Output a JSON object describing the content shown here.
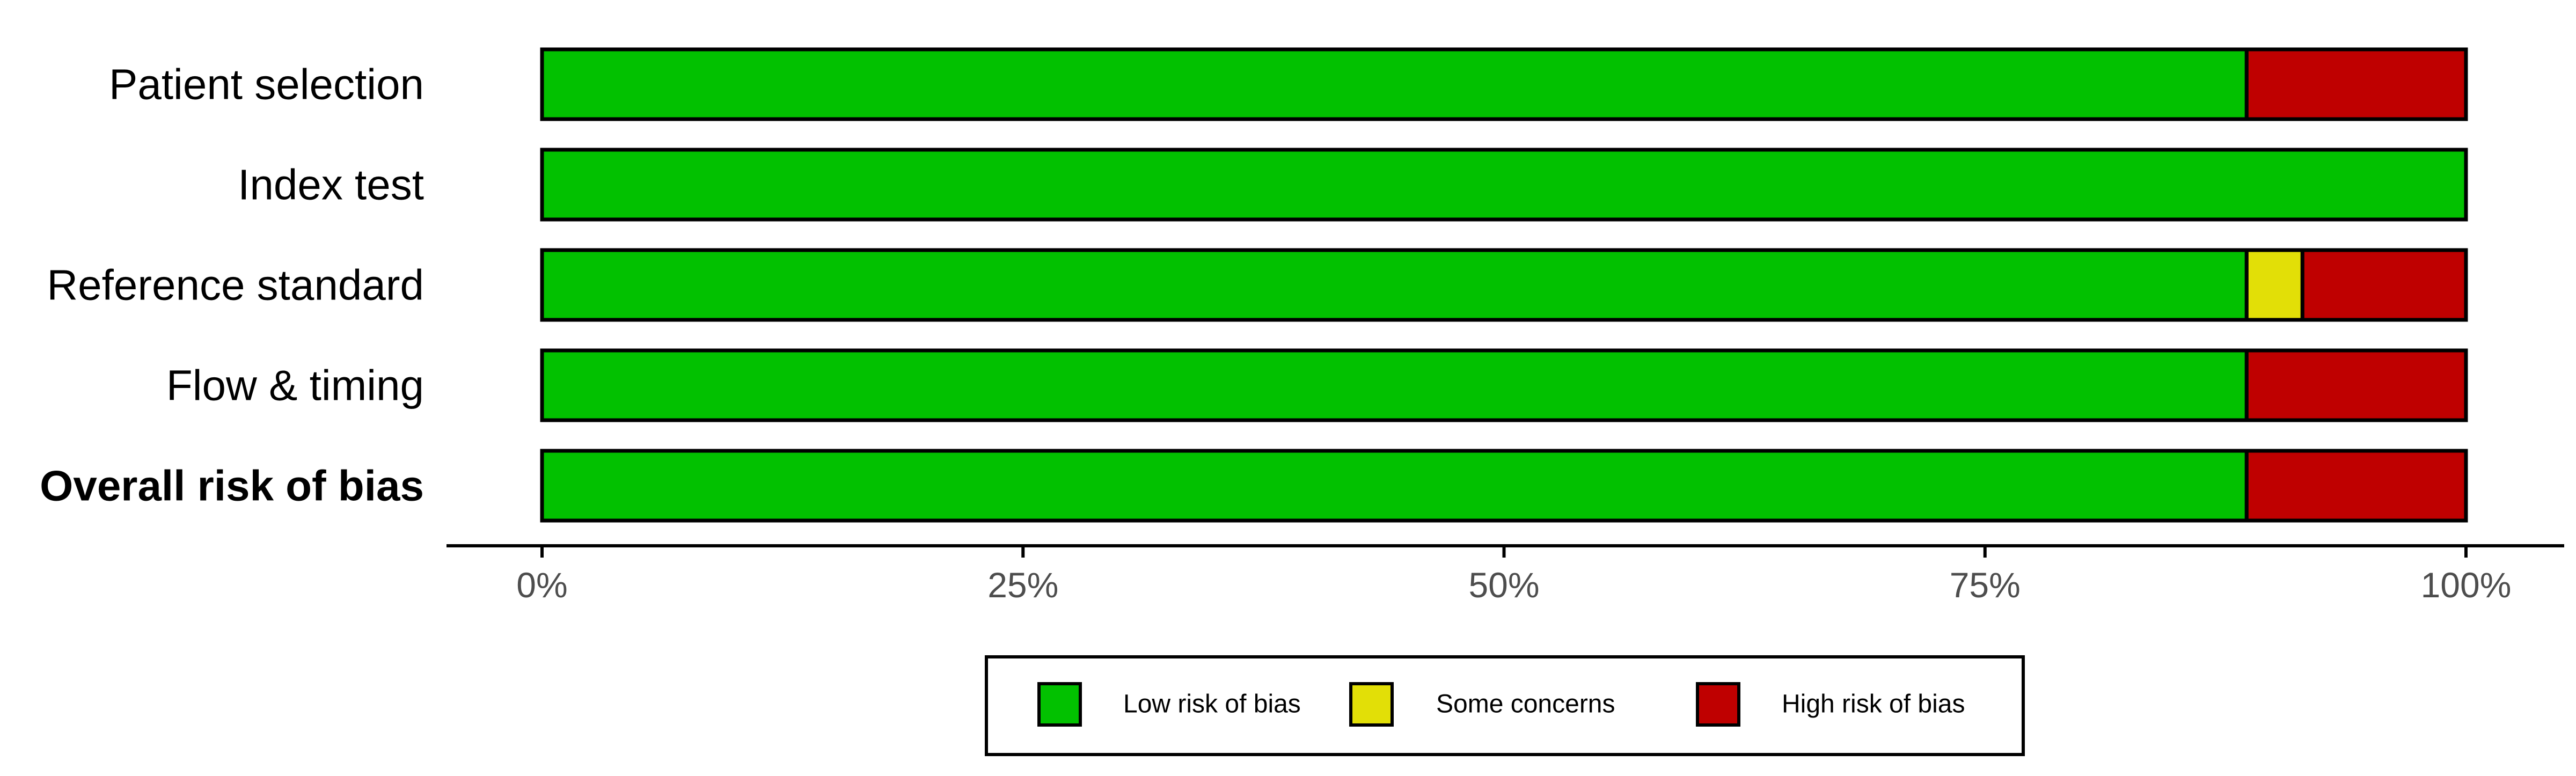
{
  "chart_data": {
    "type": "bar",
    "orientation": "horizontal",
    "stacked": true,
    "categories": [
      "Patient selection",
      "Index test",
      "Reference standard",
      "Flow & timing",
      "Overall risk of bias"
    ],
    "bold_category": "Overall risk of bias",
    "series": [
      {
        "name": "Low risk of bias",
        "color": "#02C100",
        "values": [
          88.6,
          100,
          88.6,
          88.6,
          88.6
        ]
      },
      {
        "name": "Some concerns",
        "color": "#E2DF07",
        "values": [
          0,
          0,
          2.9,
          0,
          0
        ]
      },
      {
        "name": "High risk of bias",
        "color": "#BF0000",
        "values": [
          11.4,
          0,
          8.5,
          11.4,
          11.4
        ]
      }
    ],
    "xlim": [
      0,
      100
    ],
    "x_ticks": [
      0,
      25,
      50,
      75,
      100
    ],
    "x_tick_labels": [
      "0%",
      "25%",
      "50%",
      "75%",
      "100%"
    ],
    "grid": false,
    "legend_position": "bottom",
    "title": "",
    "xlabel": "",
    "ylabel": ""
  }
}
